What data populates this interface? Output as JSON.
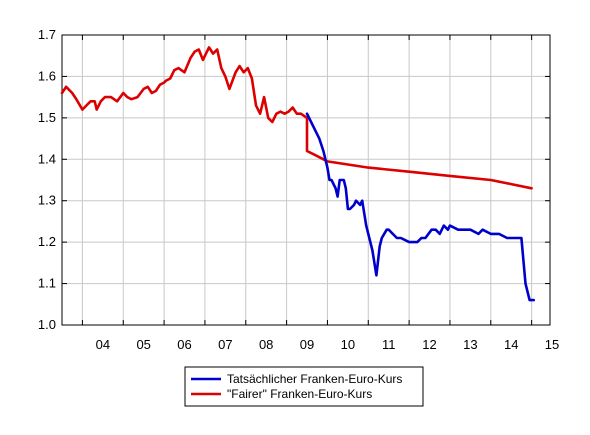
{
  "chart_data": {
    "type": "line",
    "title": "",
    "xlabel": "",
    "ylabel": "",
    "xlim": [
      2003.5,
      2015.45
    ],
    "ylim": [
      1.0,
      1.7
    ],
    "yticks": [
      1.0,
      1.1,
      1.2,
      1.3,
      1.4,
      1.5,
      1.6,
      1.7
    ],
    "ytick_labels": [
      "1.0",
      "1.1",
      "1.2",
      "1.3",
      "1.4",
      "1.5",
      "1.6",
      "1.7"
    ],
    "xticks": [
      2004,
      2005,
      2006,
      2007,
      2008,
      2009,
      2010,
      2011,
      2012,
      2013,
      2014,
      2015
    ],
    "xtick_labels": [
      "04",
      "05",
      "06",
      "07",
      "08",
      "09",
      "10",
      "11",
      "12",
      "13",
      "14",
      "15"
    ],
    "grid": true,
    "legend_position": "bottom-center",
    "series": [
      {
        "name": "Tatsächlicher Franken-Euro-Kurs",
        "color": "#0000cc",
        "x": [
          2009.5,
          2009.6,
          2009.7,
          2009.8,
          2009.9,
          2010.0,
          2010.05,
          2010.1,
          2010.2,
          2010.25,
          2010.3,
          2010.4,
          2010.45,
          2010.5,
          2010.55,
          2010.65,
          2010.7,
          2010.8,
          2010.85,
          2010.95,
          2011.0,
          2011.1,
          2011.2,
          2011.28,
          2011.33,
          2011.45,
          2011.5,
          2011.6,
          2011.7,
          2011.8,
          2012.0,
          2012.2,
          2012.3,
          2012.4,
          2012.55,
          2012.65,
          2012.75,
          2012.85,
          2012.95,
          2013.0,
          2013.2,
          2013.35,
          2013.45,
          2013.5,
          2013.7,
          2013.8,
          2014.0,
          2014.2,
          2014.4,
          2014.6,
          2014.75,
          2014.85,
          2014.95,
          2015.05
        ],
        "y": [
          1.51,
          1.49,
          1.47,
          1.45,
          1.42,
          1.38,
          1.35,
          1.35,
          1.33,
          1.31,
          1.35,
          1.35,
          1.33,
          1.28,
          1.28,
          1.29,
          1.3,
          1.29,
          1.3,
          1.24,
          1.22,
          1.18,
          1.12,
          1.19,
          1.21,
          1.23,
          1.23,
          1.22,
          1.21,
          1.21,
          1.2,
          1.2,
          1.21,
          1.21,
          1.23,
          1.23,
          1.22,
          1.24,
          1.23,
          1.24,
          1.23,
          1.23,
          1.23,
          1.23,
          1.22,
          1.23,
          1.22,
          1.22,
          1.21,
          1.21,
          1.21,
          1.1,
          1.06,
          1.06
        ]
      },
      {
        "name": "\"Fairer\" Franken-Euro-Kurs",
        "color": "#dd0000",
        "x": [
          2003.5,
          2003.6,
          2003.75,
          2003.85,
          2004.0,
          2004.1,
          2004.2,
          2004.3,
          2004.35,
          2004.45,
          2004.55,
          2004.7,
          2004.85,
          2005.0,
          2005.1,
          2005.2,
          2005.35,
          2005.5,
          2005.6,
          2005.7,
          2005.8,
          2005.9,
          2006.0,
          2006.05,
          2006.15,
          2006.25,
          2006.35,
          2006.5,
          2006.65,
          2006.75,
          2006.85,
          2006.95,
          2007.1,
          2007.2,
          2007.3,
          2007.4,
          2007.5,
          2007.6,
          2007.75,
          2007.85,
          2007.95,
          2008.05,
          2008.15,
          2008.25,
          2008.35,
          2008.45,
          2008.55,
          2008.65,
          2008.75,
          2008.85,
          2008.95,
          2009.05,
          2009.15,
          2009.25,
          2009.35,
          2009.5,
          2009.5,
          2009.7,
          2009.9,
          2010.0,
          2011.0,
          2012.0,
          2013.0,
          2014.0,
          2014.5,
          2015.0
        ],
        "y": [
          1.56,
          1.575,
          1.56,
          1.545,
          1.52,
          1.53,
          1.54,
          1.54,
          1.52,
          1.54,
          1.55,
          1.55,
          1.54,
          1.56,
          1.55,
          1.545,
          1.55,
          1.57,
          1.575,
          1.56,
          1.565,
          1.58,
          1.585,
          1.59,
          1.595,
          1.615,
          1.62,
          1.61,
          1.645,
          1.66,
          1.665,
          1.64,
          1.67,
          1.655,
          1.665,
          1.62,
          1.6,
          1.57,
          1.61,
          1.625,
          1.61,
          1.62,
          1.595,
          1.53,
          1.51,
          1.55,
          1.5,
          1.49,
          1.51,
          1.515,
          1.51,
          1.515,
          1.525,
          1.51,
          1.51,
          1.5,
          1.42,
          1.41,
          1.4,
          1.395,
          1.38,
          1.37,
          1.36,
          1.35,
          1.34,
          1.33
        ]
      }
    ]
  }
}
